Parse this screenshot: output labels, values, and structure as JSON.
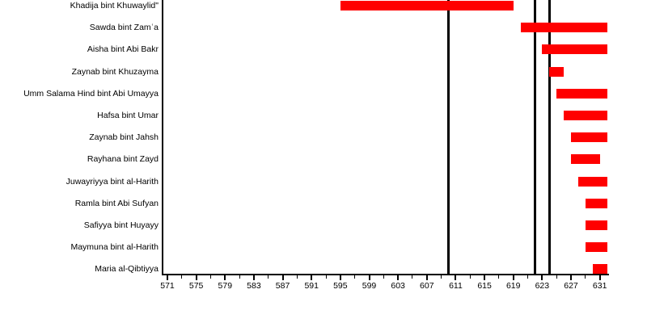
{
  "chart_data": {
    "type": "bar",
    "subtype": "horizontal-timeline-gantt",
    "description": "Timeline of marriages, one red bar per wife, years CE on the x-axis",
    "rows": [
      {
        "label": "Khadija bint Khuwaylid\"",
        "start": 595,
        "end": 619
      },
      {
        "label": "Sawda bint Zamʿa",
        "start": 620,
        "end": 632
      },
      {
        "label": "Aisha bint Abi Bakr",
        "start": 623,
        "end": 632
      },
      {
        "label": "Zaynab bint Khuzayma",
        "start": 624,
        "end": 626
      },
      {
        "label": "Umm Salama Hind bint Abi Umayya",
        "start": 625,
        "end": 632
      },
      {
        "label": "Hafsa bint Umar",
        "start": 626,
        "end": 632
      },
      {
        "label": "Zaynab bint Jahsh",
        "start": 627,
        "end": 632
      },
      {
        "label": "Rayhana bint Zayd",
        "start": 627,
        "end": 631
      },
      {
        "label": "Juwayriyya bint al-Harith",
        "start": 628,
        "end": 632
      },
      {
        "label": "Ramla bint Abi Sufyan",
        "start": 629,
        "end": 632
      },
      {
        "label": "Safiyya bint Huyayy",
        "start": 629,
        "end": 632
      },
      {
        "label": "Maymuna bint al-Harith",
        "start": 629,
        "end": 632
      },
      {
        "label": "Maria al-Qibtiyya",
        "start": 630,
        "end": 632
      }
    ],
    "x_axis": {
      "unit": "year CE",
      "tick_min": 571,
      "tick_max": 631,
      "major_step": 4,
      "minor_step": 2,
      "major_ticks": [
        571,
        575,
        579,
        583,
        587,
        591,
        595,
        599,
        603,
        607,
        611,
        615,
        619,
        623,
        627,
        631
      ],
      "minor_ticks": [
        573,
        577,
        581,
        585,
        589,
        593,
        597,
        601,
        605,
        609,
        613,
        617,
        621,
        625,
        629
      ]
    },
    "event_lines": [
      610,
      622,
      624
    ],
    "xlim": [
      570.3,
      632.4
    ],
    "grid": false,
    "legend": false,
    "bar_color": "#ff0000",
    "line_color": "#000000",
    "text_color": "#000000",
    "background_color": "#ffffff"
  }
}
